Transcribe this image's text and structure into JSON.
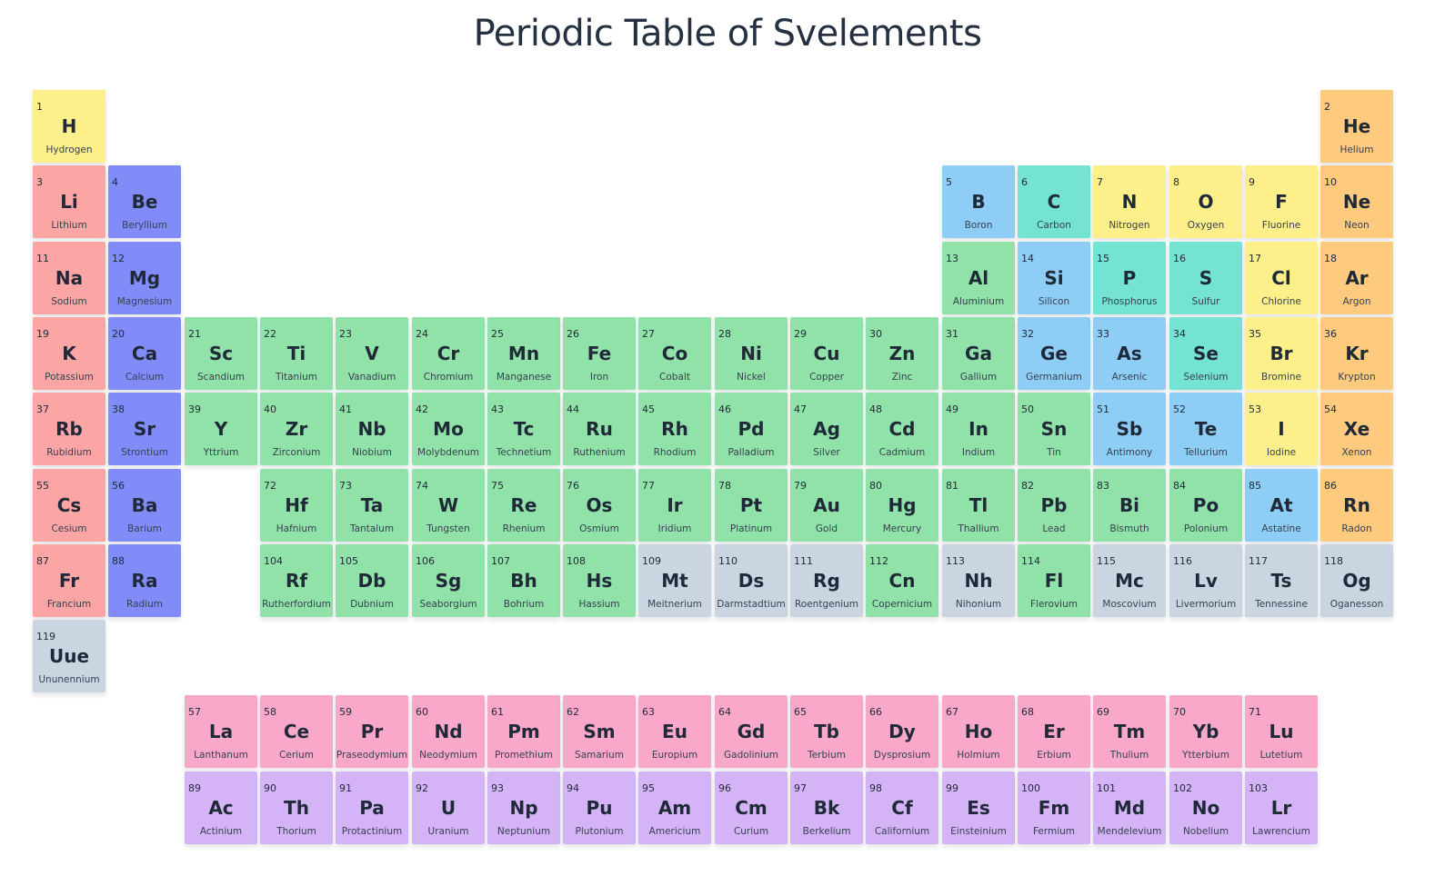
{
  "title": "Periodic Table of Svelements",
  "colors": {
    "alkali-metal": "#fca5a5",
    "alkaline-earth": "#818cf8",
    "transition-metal": "#86efac",
    "post-transition": "#86efac",
    "metalloid": "#7dd3fc",
    "nonmetal-teal": "#6ee7d7",
    "nonmetal-yellow": "#fde68a",
    "halogen": "#fde68a",
    "noble-gas": "#fcd34d",
    "unknown": "#cbd5e1",
    "lanthanide": "#f9a8d4",
    "actinide": "#d8b4fe"
  },
  "elements": [
    {
      "n": "1",
      "s": "H",
      "name": "Hydrogen",
      "c": "#fdf08a"
    },
    {
      "n": "2",
      "s": "He",
      "name": "Helium",
      "c": "#fdca7e"
    },
    {
      "n": "3",
      "s": "Li",
      "name": "Lithium",
      "c": "#fca5a5"
    },
    {
      "n": "4",
      "s": "Be",
      "name": "Beryllium",
      "c": "#818cf8"
    },
    {
      "n": "5",
      "s": "B",
      "name": "Boron",
      "c": "#8ecdf6"
    },
    {
      "n": "6",
      "s": "C",
      "name": "Carbon",
      "c": "#74e3d2"
    },
    {
      "n": "7",
      "s": "N",
      "name": "Nitrogen",
      "c": "#fdf08a"
    },
    {
      "n": "8",
      "s": "O",
      "name": "Oxygen",
      "c": "#fdf08a"
    },
    {
      "n": "9",
      "s": "F",
      "name": "Fluorine",
      "c": "#fdf08a"
    },
    {
      "n": "10",
      "s": "Ne",
      "name": "Neon",
      "c": "#fdca7e"
    },
    {
      "n": "11",
      "s": "Na",
      "name": "Sodium",
      "c": "#fca5a5"
    },
    {
      "n": "12",
      "s": "Mg",
      "name": "Magnesium",
      "c": "#818cf8"
    },
    {
      "n": "13",
      "s": "Al",
      "name": "Aluminium",
      "c": "#90e2a8"
    },
    {
      "n": "14",
      "s": "Si",
      "name": "Silicon",
      "c": "#8ecdf6"
    },
    {
      "n": "15",
      "s": "P",
      "name": "Phosphorus",
      "c": "#74e3d2"
    },
    {
      "n": "16",
      "s": "S",
      "name": "Sulfur",
      "c": "#74e3d2"
    },
    {
      "n": "17",
      "s": "Cl",
      "name": "Chlorine",
      "c": "#fdf08a"
    },
    {
      "n": "18",
      "s": "Ar",
      "name": "Argon",
      "c": "#fdca7e"
    },
    {
      "n": "19",
      "s": "K",
      "name": "Potassium",
      "c": "#fca5a5"
    },
    {
      "n": "20",
      "s": "Ca",
      "name": "Calcium",
      "c": "#818cf8"
    },
    {
      "n": "21",
      "s": "Sc",
      "name": "Scandium",
      "c": "#90e2a8"
    },
    {
      "n": "22",
      "s": "Ti",
      "name": "Titanium",
      "c": "#90e2a8"
    },
    {
      "n": "23",
      "s": "V",
      "name": "Vanadium",
      "c": "#90e2a8"
    },
    {
      "n": "24",
      "s": "Cr",
      "name": "Chromium",
      "c": "#90e2a8"
    },
    {
      "n": "25",
      "s": "Mn",
      "name": "Manganese",
      "c": "#90e2a8"
    },
    {
      "n": "26",
      "s": "Fe",
      "name": "Iron",
      "c": "#90e2a8"
    },
    {
      "n": "27",
      "s": "Co",
      "name": "Cobalt",
      "c": "#90e2a8"
    },
    {
      "n": "28",
      "s": "Ni",
      "name": "Nickel",
      "c": "#90e2a8"
    },
    {
      "n": "29",
      "s": "Cu",
      "name": "Copper",
      "c": "#90e2a8"
    },
    {
      "n": "30",
      "s": "Zn",
      "name": "Zinc",
      "c": "#90e2a8"
    },
    {
      "n": "31",
      "s": "Ga",
      "name": "Gallium",
      "c": "#90e2a8"
    },
    {
      "n": "32",
      "s": "Ge",
      "name": "Germanium",
      "c": "#8ecdf6"
    },
    {
      "n": "33",
      "s": "As",
      "name": "Arsenic",
      "c": "#8ecdf6"
    },
    {
      "n": "34",
      "s": "Se",
      "name": "Selenium",
      "c": "#74e3d2"
    },
    {
      "n": "35",
      "s": "Br",
      "name": "Bromine",
      "c": "#fdf08a"
    },
    {
      "n": "36",
      "s": "Kr",
      "name": "Krypton",
      "c": "#fdca7e"
    },
    {
      "n": "37",
      "s": "Rb",
      "name": "Rubidium",
      "c": "#fca5a5"
    },
    {
      "n": "38",
      "s": "Sr",
      "name": "Strontium",
      "c": "#818cf8"
    },
    {
      "n": "39",
      "s": "Y",
      "name": "Yttrium",
      "c": "#90e2a8"
    },
    {
      "n": "40",
      "s": "Zr",
      "name": "Zirconium",
      "c": "#90e2a8"
    },
    {
      "n": "41",
      "s": "Nb",
      "name": "Niobium",
      "c": "#90e2a8"
    },
    {
      "n": "42",
      "s": "Mo",
      "name": "Molybdenum",
      "c": "#90e2a8"
    },
    {
      "n": "43",
      "s": "Tc",
      "name": "Technetium",
      "c": "#90e2a8"
    },
    {
      "n": "44",
      "s": "Ru",
      "name": "Ruthenium",
      "c": "#90e2a8"
    },
    {
      "n": "45",
      "s": "Rh",
      "name": "Rhodium",
      "c": "#90e2a8"
    },
    {
      "n": "46",
      "s": "Pd",
      "name": "Palladium",
      "c": "#90e2a8"
    },
    {
      "n": "47",
      "s": "Ag",
      "name": "Silver",
      "c": "#90e2a8"
    },
    {
      "n": "48",
      "s": "Cd",
      "name": "Cadmium",
      "c": "#90e2a8"
    },
    {
      "n": "49",
      "s": "In",
      "name": "Indium",
      "c": "#90e2a8"
    },
    {
      "n": "50",
      "s": "Sn",
      "name": "Tin",
      "c": "#90e2a8"
    },
    {
      "n": "51",
      "s": "Sb",
      "name": "Antimony",
      "c": "#8ecdf6"
    },
    {
      "n": "52",
      "s": "Te",
      "name": "Tellurium",
      "c": "#8ecdf6"
    },
    {
      "n": "53",
      "s": "I",
      "name": "Iodine",
      "c": "#fdf08a"
    },
    {
      "n": "54",
      "s": "Xe",
      "name": "Xenon",
      "c": "#fdca7e"
    },
    {
      "n": "55",
      "s": "Cs",
      "name": "Cesium",
      "c": "#fca5a5"
    },
    {
      "n": "56",
      "s": "Ba",
      "name": "Barium",
      "c": "#818cf8"
    },
    {
      "n": "57",
      "s": "La",
      "name": "Lanthanum",
      "c": "#f9a8c9"
    },
    {
      "n": "58",
      "s": "Ce",
      "name": "Cerium",
      "c": "#f9a8c9"
    },
    {
      "n": "59",
      "s": "Pr",
      "name": "Praseodymium",
      "c": "#f9a8c9"
    },
    {
      "n": "60",
      "s": "Nd",
      "name": "Neodymium",
      "c": "#f9a8c9"
    },
    {
      "n": "61",
      "s": "Pm",
      "name": "Promethium",
      "c": "#f9a8c9"
    },
    {
      "n": "62",
      "s": "Sm",
      "name": "Samarium",
      "c": "#f9a8c9"
    },
    {
      "n": "63",
      "s": "Eu",
      "name": "Europium",
      "c": "#f9a8c9"
    },
    {
      "n": "64",
      "s": "Gd",
      "name": "Gadolinium",
      "c": "#f9a8c9"
    },
    {
      "n": "65",
      "s": "Tb",
      "name": "Terbium",
      "c": "#f9a8c9"
    },
    {
      "n": "66",
      "s": "Dy",
      "name": "Dysprosium",
      "c": "#f9a8c9"
    },
    {
      "n": "67",
      "s": "Ho",
      "name": "Holmium",
      "c": "#f9a8c9"
    },
    {
      "n": "68",
      "s": "Er",
      "name": "Erbium",
      "c": "#f9a8c9"
    },
    {
      "n": "69",
      "s": "Tm",
      "name": "Thulium",
      "c": "#f9a8c9"
    },
    {
      "n": "70",
      "s": "Yb",
      "name": "Ytterbium",
      "c": "#f9a8c9"
    },
    {
      "n": "71",
      "s": "Lu",
      "name": "Lutetium",
      "c": "#f9a8c9"
    },
    {
      "n": "72",
      "s": "Hf",
      "name": "Hafnium",
      "c": "#90e2a8"
    },
    {
      "n": "73",
      "s": "Ta",
      "name": "Tantalum",
      "c": "#90e2a8"
    },
    {
      "n": "74",
      "s": "W",
      "name": "Tungsten",
      "c": "#90e2a8"
    },
    {
      "n": "75",
      "s": "Re",
      "name": "Rhenium",
      "c": "#90e2a8"
    },
    {
      "n": "76",
      "s": "Os",
      "name": "Osmium",
      "c": "#90e2a8"
    },
    {
      "n": "77",
      "s": "Ir",
      "name": "Iridium",
      "c": "#90e2a8"
    },
    {
      "n": "78",
      "s": "Pt",
      "name": "Platinum",
      "c": "#90e2a8"
    },
    {
      "n": "79",
      "s": "Au",
      "name": "Gold",
      "c": "#90e2a8"
    },
    {
      "n": "80",
      "s": "Hg",
      "name": "Mercury",
      "c": "#90e2a8"
    },
    {
      "n": "81",
      "s": "Tl",
      "name": "Thallium",
      "c": "#90e2a8"
    },
    {
      "n": "82",
      "s": "Pb",
      "name": "Lead",
      "c": "#90e2a8"
    },
    {
      "n": "83",
      "s": "Bi",
      "name": "Bismuth",
      "c": "#90e2a8"
    },
    {
      "n": "84",
      "s": "Po",
      "name": "Polonium",
      "c": "#90e2a8"
    },
    {
      "n": "85",
      "s": "At",
      "name": "Astatine",
      "c": "#8ecdf6"
    },
    {
      "n": "86",
      "s": "Rn",
      "name": "Radon",
      "c": "#fdca7e"
    },
    {
      "n": "87",
      "s": "Fr",
      "name": "Francium",
      "c": "#fca5a5"
    },
    {
      "n": "88",
      "s": "Ra",
      "name": "Radium",
      "c": "#818cf8"
    },
    {
      "n": "89",
      "s": "Ac",
      "name": "Actinium",
      "c": "#d4b4f7"
    },
    {
      "n": "90",
      "s": "Th",
      "name": "Thorium",
      "c": "#d4b4f7"
    },
    {
      "n": "91",
      "s": "Pa",
      "name": "Protactinium",
      "c": "#d4b4f7"
    },
    {
      "n": "92",
      "s": "U",
      "name": "Uranium",
      "c": "#d4b4f7"
    },
    {
      "n": "93",
      "s": "Np",
      "name": "Neptunium",
      "c": "#d4b4f7"
    },
    {
      "n": "94",
      "s": "Pu",
      "name": "Plutonium",
      "c": "#d4b4f7"
    },
    {
      "n": "95",
      "s": "Am",
      "name": "Americium",
      "c": "#d4b4f7"
    },
    {
      "n": "96",
      "s": "Cm",
      "name": "Curium",
      "c": "#d4b4f7"
    },
    {
      "n": "97",
      "s": "Bk",
      "name": "Berkelium",
      "c": "#d4b4f7"
    },
    {
      "n": "98",
      "s": "Cf",
      "name": "Californium",
      "c": "#d4b4f7"
    },
    {
      "n": "99",
      "s": "Es",
      "name": "Einsteinium",
      "c": "#d4b4f7"
    },
    {
      "n": "100",
      "s": "Fm",
      "name": "Fermium",
      "c": "#d4b4f7"
    },
    {
      "n": "101",
      "s": "Md",
      "name": "Mendelevium",
      "c": "#d4b4f7"
    },
    {
      "n": "102",
      "s": "No",
      "name": "Nobelium",
      "c": "#d4b4f7"
    },
    {
      "n": "103",
      "s": "Lr",
      "name": "Lawrencium",
      "c": "#d4b4f7"
    },
    {
      "n": "104",
      "s": "Rf",
      "name": "Rutherfordium",
      "c": "#90e2a8"
    },
    {
      "n": "105",
      "s": "Db",
      "name": "Dubnium",
      "c": "#90e2a8"
    },
    {
      "n": "106",
      "s": "Sg",
      "name": "Seaborgium",
      "c": "#90e2a8"
    },
    {
      "n": "107",
      "s": "Bh",
      "name": "Bohrium",
      "c": "#90e2a8"
    },
    {
      "n": "108",
      "s": "Hs",
      "name": "Hassium",
      "c": "#90e2a8"
    },
    {
      "n": "109",
      "s": "Mt",
      "name": "Meitnerium",
      "c": "#cbd5e1"
    },
    {
      "n": "110",
      "s": "Ds",
      "name": "Darmstadtium",
      "c": "#cbd5e1"
    },
    {
      "n": "111",
      "s": "Rg",
      "name": "Roentgenium",
      "c": "#cbd5e1"
    },
    {
      "n": "112",
      "s": "Cn",
      "name": "Copernicium",
      "c": "#90e2a8"
    },
    {
      "n": "113",
      "s": "Nh",
      "name": "Nihonium",
      "c": "#cbd5e1"
    },
    {
      "n": "114",
      "s": "Fl",
      "name": "Flerovium",
      "c": "#90e2a8"
    },
    {
      "n": "115",
      "s": "Mc",
      "name": "Moscovium",
      "c": "#cbd5e1"
    },
    {
      "n": "116",
      "s": "Lv",
      "name": "Livermorium",
      "c": "#cbd5e1"
    },
    {
      "n": "117",
      "s": "Ts",
      "name": "Tennessine",
      "c": "#cbd5e1"
    },
    {
      "n": "118",
      "s": "Og",
      "name": "Oganesson",
      "c": "#cbd5e1"
    },
    {
      "n": "119",
      "s": "Uue",
      "name": "Ununennium",
      "c": "#cbd5e1"
    }
  ]
}
